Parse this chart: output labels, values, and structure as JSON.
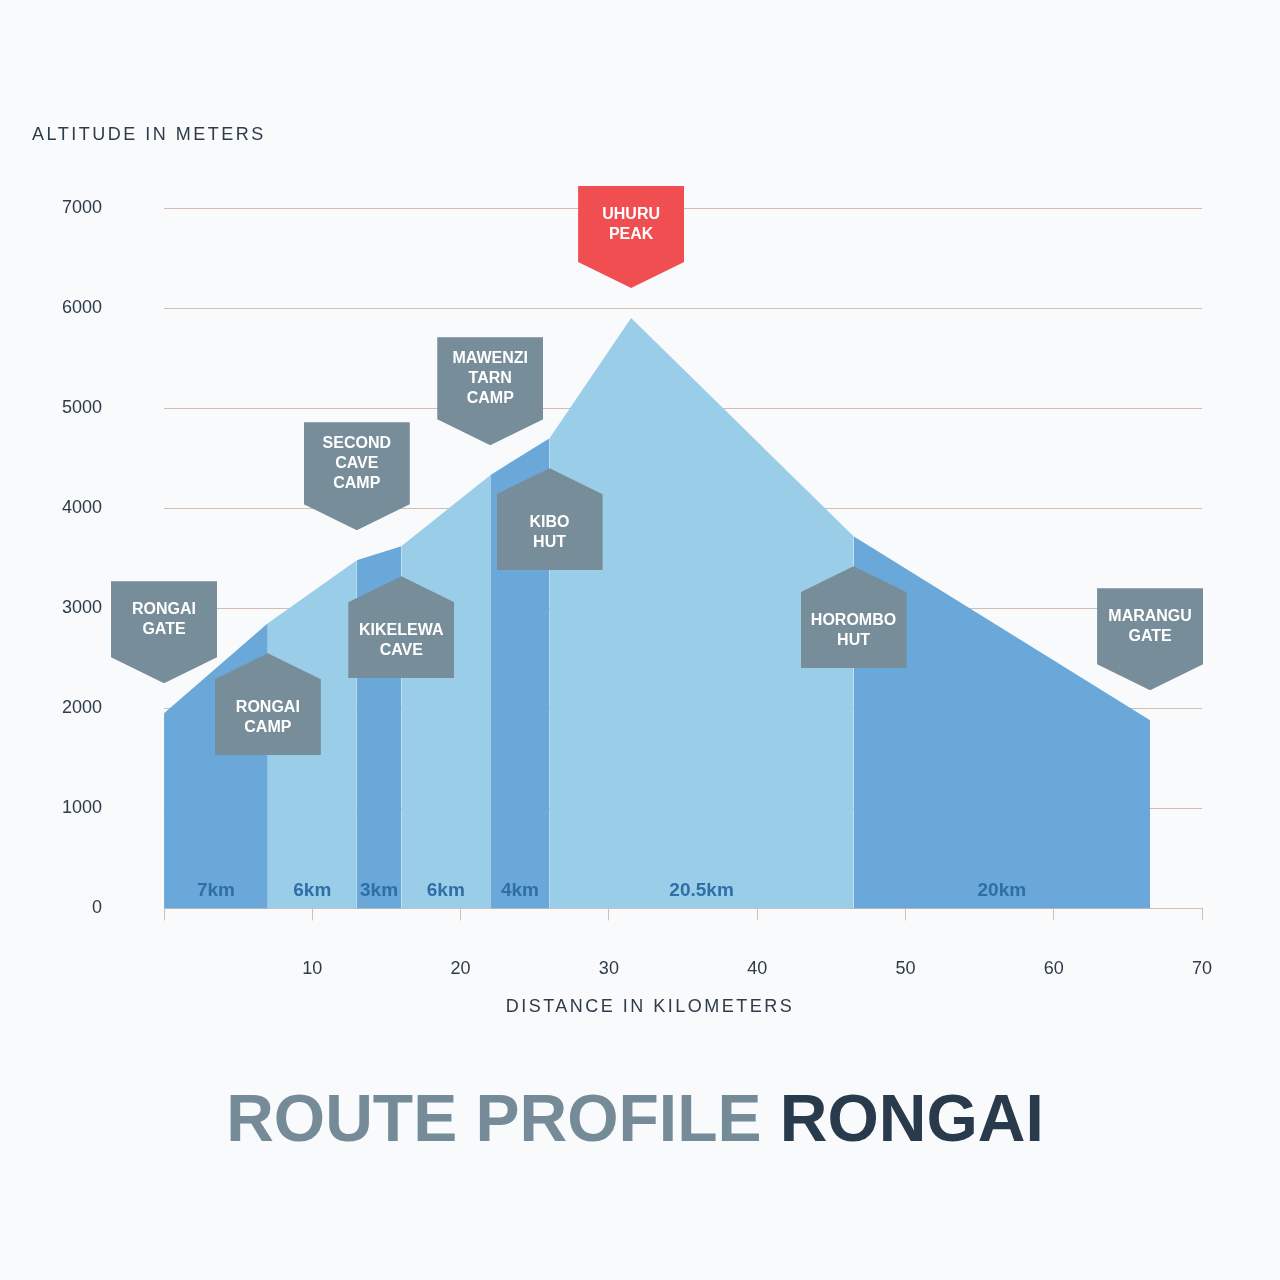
{
  "chart_data": {
    "type": "area",
    "title": "ROUTE PROFILE RONGAI",
    "xlabel": "DISTANCE IN KILOMETERS",
    "ylabel": "ALTITUDE IN METERS",
    "series": [
      {
        "name": "7km",
        "color": "#6aa8da",
        "x": [
          0,
          7
        ],
        "values": [
          1950,
          2850
        ]
      },
      {
        "name": "6km",
        "color": "#9acde8",
        "x": [
          7,
          13
        ],
        "values": [
          2850,
          3480
        ]
      },
      {
        "name": "3km",
        "color": "#6aa8da",
        "x": [
          13,
          16
        ],
        "values": [
          3480,
          3620
        ]
      },
      {
        "name": "6km",
        "color": "#9acde8",
        "x": [
          16,
          22
        ],
        "values": [
          3620,
          4330
        ]
      },
      {
        "name": "4km",
        "color": "#6aa8da",
        "x": [
          22,
          26
        ],
        "values": [
          4330,
          4700
        ]
      },
      {
        "name": "20.5km",
        "color": "#9acde8",
        "x": [
          26,
          31.5,
          46.5
        ],
        "values": [
          4700,
          5900,
          3720
        ]
      },
      {
        "name": "20km",
        "color": "#6aa8da",
        "x": [
          46.5,
          66.5
        ],
        "values": [
          3720,
          1880
        ]
      }
    ],
    "annotations": [
      "RONGAI\nGATE",
      "RONGAI\nCAMP",
      "SECOND\nCAVE\nCAMP",
      "KIKELEWA\nCAVE",
      "MAWENZI\nTARN\nCAMP",
      "KIBO\nHUT",
      "UHURU\nPEAK",
      "HOROMBO\nHUT",
      "MARANGU\nGATE"
    ],
    "xlim": [
      0,
      70
    ],
    "xticks": [
      {
        "value": 0,
        "label": null
      },
      10,
      20,
      30,
      40,
      50,
      60,
      70
    ],
    "ylim": [
      0,
      7000
    ],
    "yticks": [
      0,
      1000,
      2000,
      3000,
      4000,
      5000,
      6000,
      7000
    ],
    "grid": "y",
    "legend": false,
    "marker": "none"
  }
}
